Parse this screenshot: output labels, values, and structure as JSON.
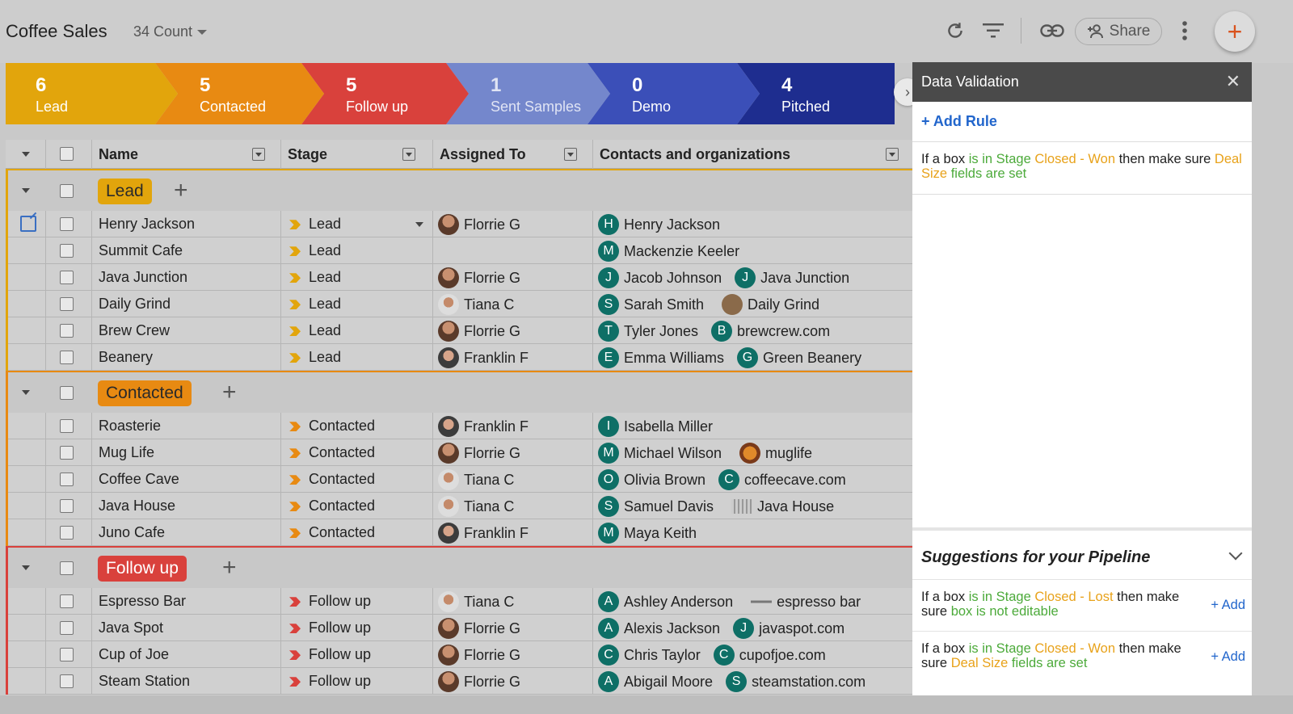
{
  "app": {
    "title": "Coffee Sales",
    "count_label": "34 Count",
    "share_label": "Share"
  },
  "pipeline": [
    {
      "count": "6",
      "name": "Lead",
      "color": "#e2a50c"
    },
    {
      "count": "5",
      "name": "Contacted",
      "color": "#e88a12"
    },
    {
      "count": "5",
      "name": "Follow up",
      "color": "#d9413c"
    },
    {
      "count": "1",
      "name": "Sent Samples",
      "color": "#6a7fcc"
    },
    {
      "count": "0",
      "name": "Demo",
      "color": "#3b4fb8"
    },
    {
      "count": "4",
      "name": "Pitched",
      "color": "#1e2d8f"
    }
  ],
  "columns": {
    "name": "Name",
    "stage": "Stage",
    "assigned": "Assigned To",
    "contacts": "Contacts and organizations"
  },
  "groups": [
    {
      "label": "Lead",
      "color": "#e2a50c",
      "rows": [
        {
          "name": "Henry Jackson",
          "stage": "Lead",
          "assigned": "Florrie G",
          "contacts": [
            {
              "type": "badge",
              "letter": "H",
              "text": "Henry Jackson"
            }
          ]
        },
        {
          "name": "Summit Cafe",
          "stage": "Lead",
          "assigned": "",
          "contacts": [
            {
              "type": "badge",
              "letter": "M",
              "text": "Mackenzie Keeler"
            }
          ]
        },
        {
          "name": "Java Junction",
          "stage": "Lead",
          "assigned": "Florrie G",
          "contacts": [
            {
              "type": "badge",
              "letter": "J",
              "text": "Jacob Johnson"
            },
            {
              "type": "badge",
              "letter": "J",
              "text": "Java Junction"
            }
          ]
        },
        {
          "name": "Daily Grind",
          "stage": "Lead",
          "assigned": "Tiana C",
          "contacts": [
            {
              "type": "badge",
              "letter": "S",
              "text": "Sarah Smith"
            },
            {
              "type": "img",
              "text": "Daily Grind"
            }
          ]
        },
        {
          "name": "Brew Crew",
          "stage": "Lead",
          "assigned": "Florrie G",
          "contacts": [
            {
              "type": "badge",
              "letter": "T",
              "text": "Tyler Jones"
            },
            {
              "type": "badge",
              "letter": "B",
              "text": "brewcrew.com"
            }
          ]
        },
        {
          "name": "Beanery",
          "stage": "Lead",
          "assigned": "Franklin F",
          "contacts": [
            {
              "type": "badge",
              "letter": "E",
              "text": "Emma Williams"
            },
            {
              "type": "badge",
              "letter": "G",
              "text": "Green Beanery"
            }
          ]
        }
      ]
    },
    {
      "label": "Contacted",
      "color": "#e88a12",
      "rows": [
        {
          "name": "Roasterie",
          "stage": "Contacted",
          "assigned": "Franklin F",
          "contacts": [
            {
              "type": "badge",
              "letter": "I",
              "text": "Isabella Miller"
            }
          ]
        },
        {
          "name": "Mug Life",
          "stage": "Contacted",
          "assigned": "Florrie G",
          "contacts": [
            {
              "type": "badge",
              "letter": "M",
              "text": "Michael Wilson"
            },
            {
              "type": "img",
              "text": "muglife"
            }
          ]
        },
        {
          "name": "Coffee Cave",
          "stage": "Contacted",
          "assigned": "Tiana C",
          "contacts": [
            {
              "type": "badge",
              "letter": "O",
              "text": "Olivia Brown"
            },
            {
              "type": "badge",
              "letter": "C",
              "text": "coffeecave.com"
            }
          ]
        },
        {
          "name": "Java House",
          "stage": "Contacted",
          "assigned": "Tiana C",
          "contacts": [
            {
              "type": "badge",
              "letter": "S",
              "text": "Samuel Davis"
            },
            {
              "type": "img",
              "text": "Java House"
            }
          ]
        },
        {
          "name": "Juno Cafe",
          "stage": "Contacted",
          "assigned": "Franklin F",
          "contacts": [
            {
              "type": "badge",
              "letter": "M",
              "text": "Maya Keith"
            }
          ]
        }
      ]
    },
    {
      "label": "Follow up",
      "color": "#d9413c",
      "rows": [
        {
          "name": "Espresso Bar",
          "stage": "Follow up",
          "assigned": "Tiana C",
          "contacts": [
            {
              "type": "badge",
              "letter": "A",
              "text": "Ashley Anderson"
            },
            {
              "type": "img",
              "text": "espresso bar"
            }
          ]
        },
        {
          "name": "Java Spot",
          "stage": "Follow up",
          "assigned": "Florrie G",
          "contacts": [
            {
              "type": "badge",
              "letter": "A",
              "text": "Alexis Jackson"
            },
            {
              "type": "badge",
              "letter": "J",
              "text": "javaspot.com"
            }
          ]
        },
        {
          "name": "Cup of Joe",
          "stage": "Follow up",
          "assigned": "Florrie G",
          "contacts": [
            {
              "type": "badge",
              "letter": "C",
              "text": "Chris Taylor"
            },
            {
              "type": "badge",
              "letter": "C",
              "text": "cupofjoe.com"
            }
          ]
        },
        {
          "name": "Steam Station",
          "stage": "Follow up",
          "assigned": "Florrie G",
          "contacts": [
            {
              "type": "badge",
              "letter": "A",
              "text": "Abigail Moore"
            },
            {
              "type": "badge",
              "letter": "S",
              "text": "steamstation.com"
            }
          ]
        }
      ]
    }
  ],
  "panel": {
    "title": "Data Validation",
    "add_rule": "+ Add Rule",
    "rule": {
      "p1": "If a box ",
      "p2": "is in Stage ",
      "p3": "Closed - Won",
      "p4": " then make sure ",
      "p5": "Deal Size",
      "p6": " fields are set"
    },
    "suggestions_title": "Suggestions for your Pipeline",
    "suggestions": [
      {
        "p1": "If a box ",
        "p2": "is in Stage ",
        "p3": "Closed - Lost",
        "p4": " then make sure ",
        "p5": "box is not editable",
        "p6": "",
        "add": "+ Add"
      },
      {
        "p1": "If a box ",
        "p2": "is in Stage ",
        "p3": "Closed - Won",
        "p4": " then make sure ",
        "p5": "Deal Size",
        "p6": " fields are set",
        "add": "+ Add"
      }
    ]
  }
}
